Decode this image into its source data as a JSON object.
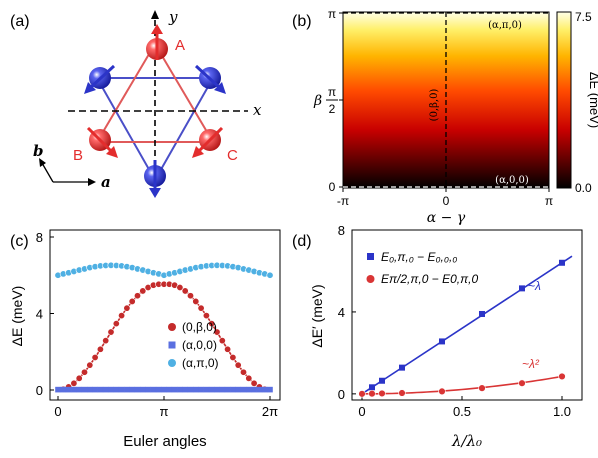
{
  "panels": {
    "a": {
      "label": "(a)",
      "axis_x": "x",
      "axis_y": "y",
      "vec_a": "a",
      "vec_b": "b",
      "site_labels": [
        "A",
        "B",
        "C"
      ],
      "colors": {
        "red": "#e32d2d",
        "blue": "#2b34c8",
        "red_line": "#e05a5a",
        "blue_line": "#4a4fc8"
      }
    },
    "b": {
      "label": "(b)",
      "x_ticks": [
        "-π",
        "0",
        "π"
      ],
      "y_ticks": [
        "0",
        "π",
        "2",
        "π"
      ],
      "x_label": "α − γ",
      "y_label": "β",
      "annotations": [
        "(α,π,0)",
        "(α,0,0)",
        "(0,β,0)"
      ],
      "colorbar": {
        "max": "7.5",
        "min": "0.0",
        "label": "ΔE (meV)"
      }
    },
    "c": {
      "label": "(c)"
    },
    "d": {
      "label": "(d)"
    }
  },
  "chart_data": [
    {
      "type": "heatmap",
      "panel": "b",
      "x_range": [
        -3.1416,
        3.1416
      ],
      "y_range": [
        0,
        3.1416
      ],
      "color_range": [
        0,
        7.5
      ],
      "colormap": "hot",
      "note_values": "energy depends on beta only, from 0 at beta=0 to 7.5 at beta=pi"
    },
    {
      "type": "line",
      "panel": "c",
      "xlabel": "Euler angles",
      "ylabel": "ΔE (meV)",
      "xlim": [
        0,
        6.2832
      ],
      "ylim": [
        0,
        8
      ],
      "x_ticks": [
        "0",
        "π",
        "2π"
      ],
      "y_ticks": [
        "0",
        "4",
        "8"
      ],
      "series": [
        {
          "name": "(0,β,0)",
          "color": "#c42b2b",
          "marker": "circle",
          "x": [
            0.1571,
            0.3142,
            0.4712,
            0.6283,
            0.7854,
            0.9425,
            1.0996,
            1.2566,
            1.4137,
            1.5708,
            1.7279,
            1.885,
            2.042,
            2.1991,
            2.3562,
            2.5133,
            2.6704,
            2.8274,
            2.9845,
            3.1416,
            3.2987,
            3.4558,
            3.6128,
            3.7699,
            3.927,
            4.0841,
            4.2412,
            4.3982,
            4.5553,
            4.7124,
            4.8695,
            5.0265,
            5.1836,
            5.3407,
            5.4978,
            5.6549,
            5.8119,
            5.969,
            6.1261
          ],
          "y": [
            0.04,
            0.16,
            0.35,
            0.61,
            0.93,
            1.3,
            1.7,
            2.13,
            2.58,
            3.03,
            3.47,
            3.89,
            4.28,
            4.63,
            4.93,
            5.18,
            5.36,
            5.48,
            5.53,
            5.53,
            5.53,
            5.48,
            5.36,
            5.18,
            4.93,
            4.63,
            4.28,
            3.89,
            3.47,
            3.03,
            2.58,
            2.13,
            1.7,
            1.3,
            0.93,
            0.61,
            0.35,
            0.16,
            0.04
          ]
        },
        {
          "name": "(α,0,0)",
          "color": "#5a6fe0",
          "marker": "square",
          "x": [
            0,
            0.1571,
            0.3142,
            0.4712,
            0.6283,
            0.7854,
            0.9425,
            1.0996,
            1.2566,
            1.4137,
            1.5708,
            1.7279,
            1.885,
            2.042,
            2.1991,
            2.3562,
            2.5133,
            2.6704,
            2.8274,
            2.9845,
            3.1416,
            3.2987,
            3.4558,
            3.6128,
            3.7699,
            3.927,
            4.0841,
            4.2412,
            4.3982,
            4.5553,
            4.7124,
            4.8695,
            5.0265,
            5.1836,
            5.3407,
            5.4978,
            5.6549,
            5.8119,
            5.969,
            6.1261,
            6.2832
          ],
          "y": [
            0.02,
            0.02,
            0.02,
            0.02,
            0.02,
            0.02,
            0.02,
            0.02,
            0.02,
            0.02,
            0.02,
            0.02,
            0.02,
            0.02,
            0.02,
            0.02,
            0.02,
            0.02,
            0.02,
            0.02,
            0.02,
            0.02,
            0.02,
            0.02,
            0.02,
            0.02,
            0.02,
            0.02,
            0.02,
            0.02,
            0.02,
            0.02,
            0.02,
            0.02,
            0.02,
            0.02,
            0.02,
            0.02,
            0.02,
            0.02,
            0.02
          ]
        },
        {
          "name": "(α,π,0)",
          "color": "#4fb0e3",
          "marker": "circle",
          "x": [
            0,
            0.1571,
            0.3142,
            0.4712,
            0.6283,
            0.7854,
            0.9425,
            1.0996,
            1.2566,
            1.4137,
            1.5708,
            1.7279,
            1.885,
            2.042,
            2.1991,
            2.3562,
            2.5133,
            2.6704,
            2.8274,
            2.9845,
            3.1416,
            3.2987,
            3.4558,
            3.6128,
            3.7699,
            3.927,
            4.0841,
            4.2412,
            4.3982,
            4.5553,
            4.7124,
            4.8695,
            5.0265,
            5.1836,
            5.3407,
            5.4978,
            5.6549,
            5.8119,
            5.969,
            6.1261,
            6.2832
          ],
          "y": [
            6.0,
            6.07,
            6.13,
            6.2,
            6.27,
            6.33,
            6.4,
            6.45,
            6.49,
            6.51,
            6.52,
            6.51,
            6.49,
            6.45,
            6.4,
            6.33,
            6.27,
            6.2,
            6.13,
            6.07,
            6.0,
            6.07,
            6.13,
            6.2,
            6.27,
            6.33,
            6.4,
            6.45,
            6.49,
            6.51,
            6.52,
            6.51,
            6.49,
            6.45,
            6.4,
            6.33,
            6.27,
            6.2,
            6.13,
            6.07,
            6.0
          ]
        }
      ]
    },
    {
      "type": "scatter",
      "panel": "d",
      "xlabel": "λ/λ₀",
      "ylabel": "ΔE′ (meV)",
      "xlim": [
        -0.05,
        1.1
      ],
      "ylim": [
        -0.3,
        8
      ],
      "x_ticks": [
        "0",
        "0.5",
        "1.0"
      ],
      "x_tick_values": [
        0,
        0.5,
        1.0
      ],
      "y_ticks": [
        "0",
        "4",
        "8"
      ],
      "y_tick_values": [
        0,
        4,
        8
      ],
      "series": [
        {
          "name": "E₀,π,₀ − E₀,₀,₀",
          "color": "#2b34c8",
          "marker": "square",
          "fit": "linear",
          "fit_label": "~λ",
          "x": [
            0.05,
            0.1,
            0.2,
            0.4,
            0.6,
            0.8,
            1.0
          ],
          "y": [
            0.32,
            0.64,
            1.28,
            2.56,
            3.9,
            5.15,
            6.4
          ]
        },
        {
          "name": "Eπ/2,π,0 − E0,π,0",
          "color": "#d93535",
          "marker": "circle",
          "fit": "quadratic",
          "fit_label": "~λ²",
          "x": [
            0,
            0.05,
            0.1,
            0.2,
            0.4,
            0.6,
            0.8,
            1.0
          ],
          "y": [
            0.0,
            0.01,
            0.02,
            0.04,
            0.12,
            0.28,
            0.52,
            0.85
          ]
        }
      ]
    }
  ]
}
